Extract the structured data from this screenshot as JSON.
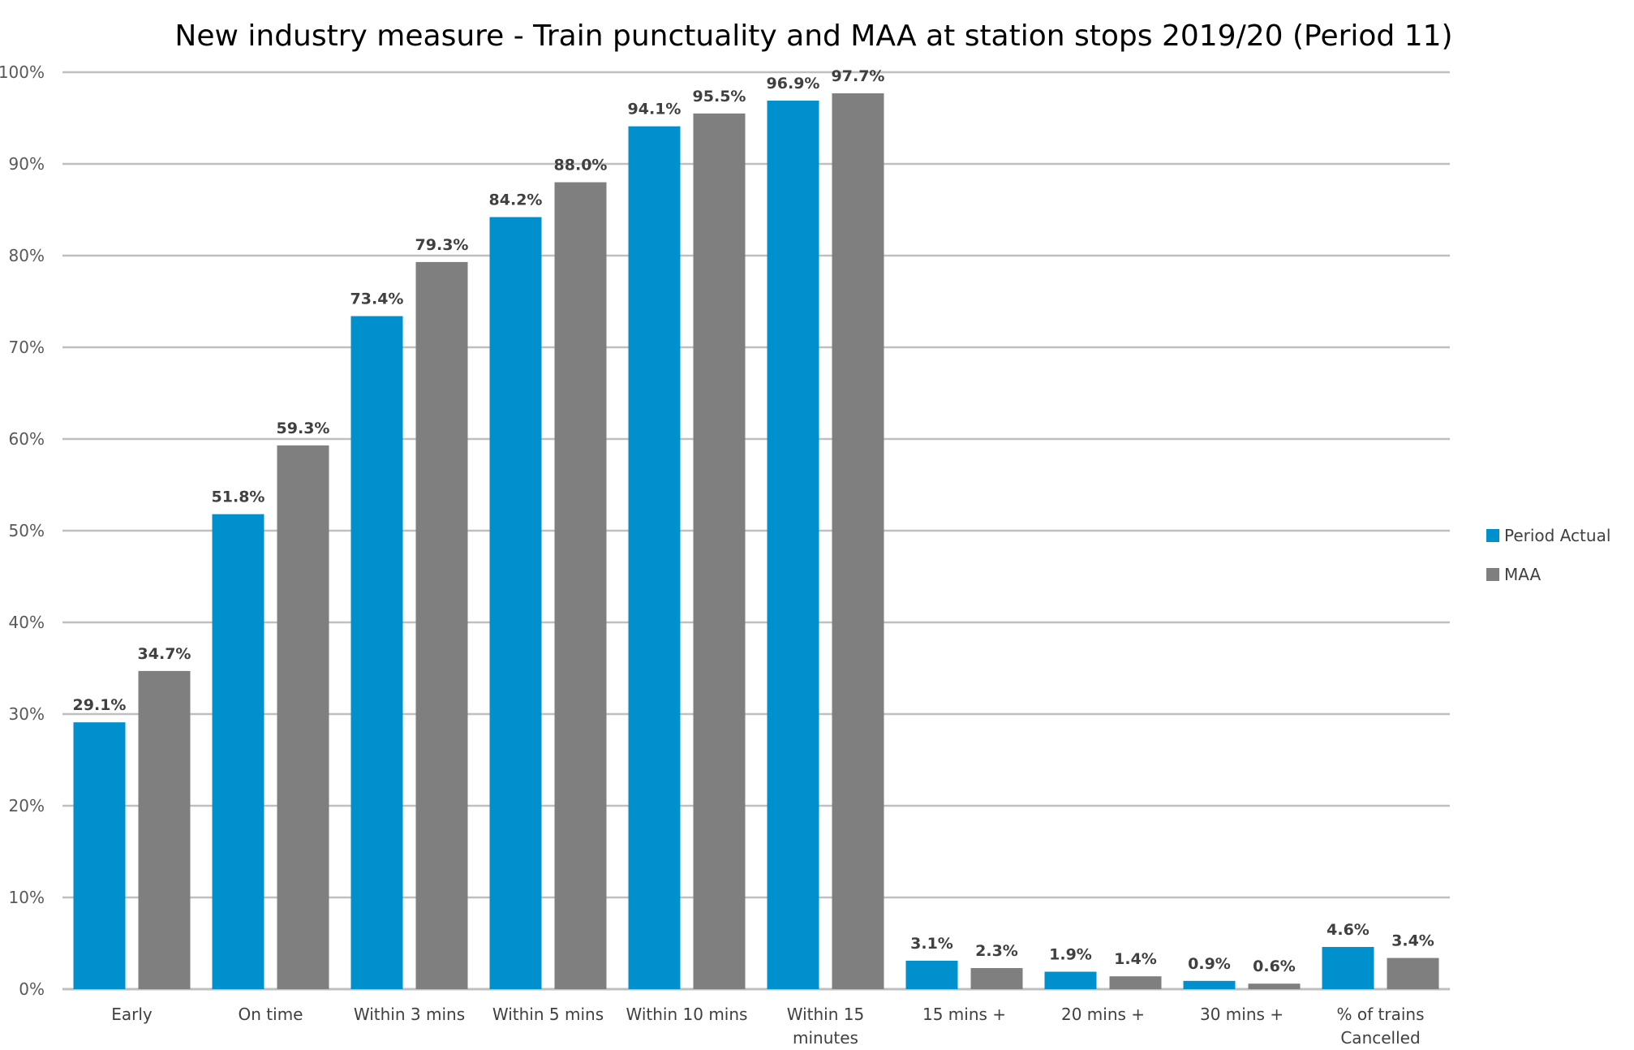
{
  "chart_data": {
    "type": "bar",
    "title": "New industry measure - Train punctuality and MAA at station stops 2019/20 (Period 11)",
    "xlabel": "",
    "ylabel": "",
    "ylim": [
      0,
      100
    ],
    "y_tick_step": 10,
    "y_tick_format": "percent",
    "grid": true,
    "legend_position": "right",
    "categories": [
      [
        "Early"
      ],
      [
        "On time"
      ],
      [
        "Within 3 mins"
      ],
      [
        "Within 5 mins"
      ],
      [
        "Within 10 mins"
      ],
      [
        "Within 15",
        "minutes"
      ],
      [
        "15 mins +"
      ],
      [
        "20 mins +"
      ],
      [
        "30 mins +"
      ],
      [
        "% of trains",
        "Cancelled"
      ]
    ],
    "series": [
      {
        "name": "Period Actual",
        "color": "#0090CE",
        "values": [
          29.1,
          51.8,
          73.4,
          84.2,
          94.1,
          96.9,
          3.1,
          1.9,
          0.9,
          4.6
        ],
        "labels": [
          "29.1%",
          "51.8%",
          "73.4%",
          "84.2%",
          "94.1%",
          "96.9%",
          "3.1%",
          "1.9%",
          "0.9%",
          "4.6%"
        ]
      },
      {
        "name": "MAA",
        "color": "#7F7F7F",
        "values": [
          34.7,
          59.3,
          79.3,
          88.0,
          95.5,
          97.7,
          2.3,
          1.4,
          0.6,
          3.4
        ],
        "labels": [
          "34.7%",
          "59.3%",
          "79.3%",
          "88.0%",
          "95.5%",
          "97.7%",
          "2.3%",
          "1.4%",
          "0.6%",
          "3.4%"
        ]
      }
    ]
  }
}
